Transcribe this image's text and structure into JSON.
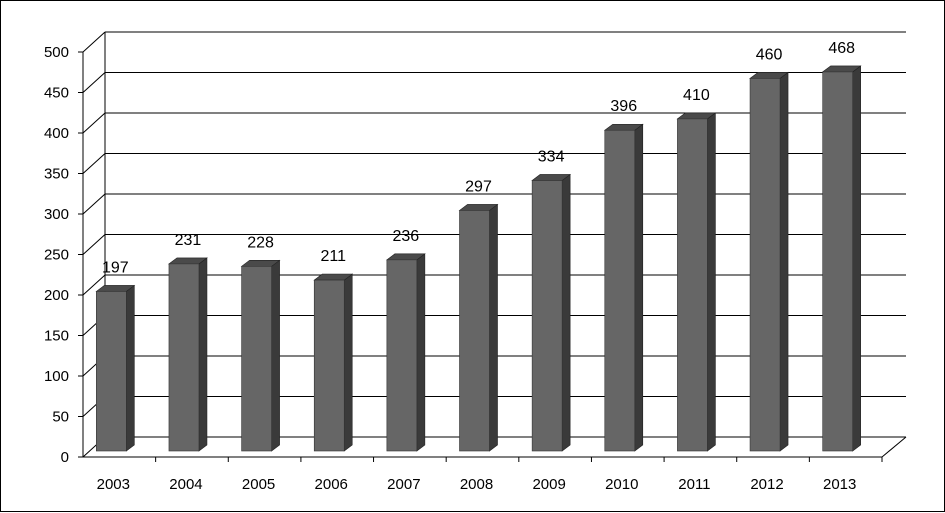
{
  "chart_data": {
    "type": "bar",
    "title": "",
    "xlabel": "",
    "ylabel": "",
    "categories": [
      "2003",
      "2004",
      "2005",
      "2006",
      "2007",
      "2008",
      "2009",
      "2010",
      "2011",
      "2012",
      "2013"
    ],
    "values": [
      197,
      231,
      228,
      211,
      236,
      297,
      334,
      396,
      410,
      460,
      468
    ],
    "ylim": [
      0,
      500
    ],
    "yticks": [
      0,
      50,
      100,
      150,
      200,
      250,
      300,
      350,
      400,
      450,
      500
    ],
    "grid": true,
    "legend": "none",
    "style": "3d-column",
    "colors": {
      "bar_front": "#666666",
      "bar_side": "#3a3a3a",
      "bar_top": "#4a4a4a",
      "gridline": "#000000",
      "background": "#ffffff"
    }
  }
}
